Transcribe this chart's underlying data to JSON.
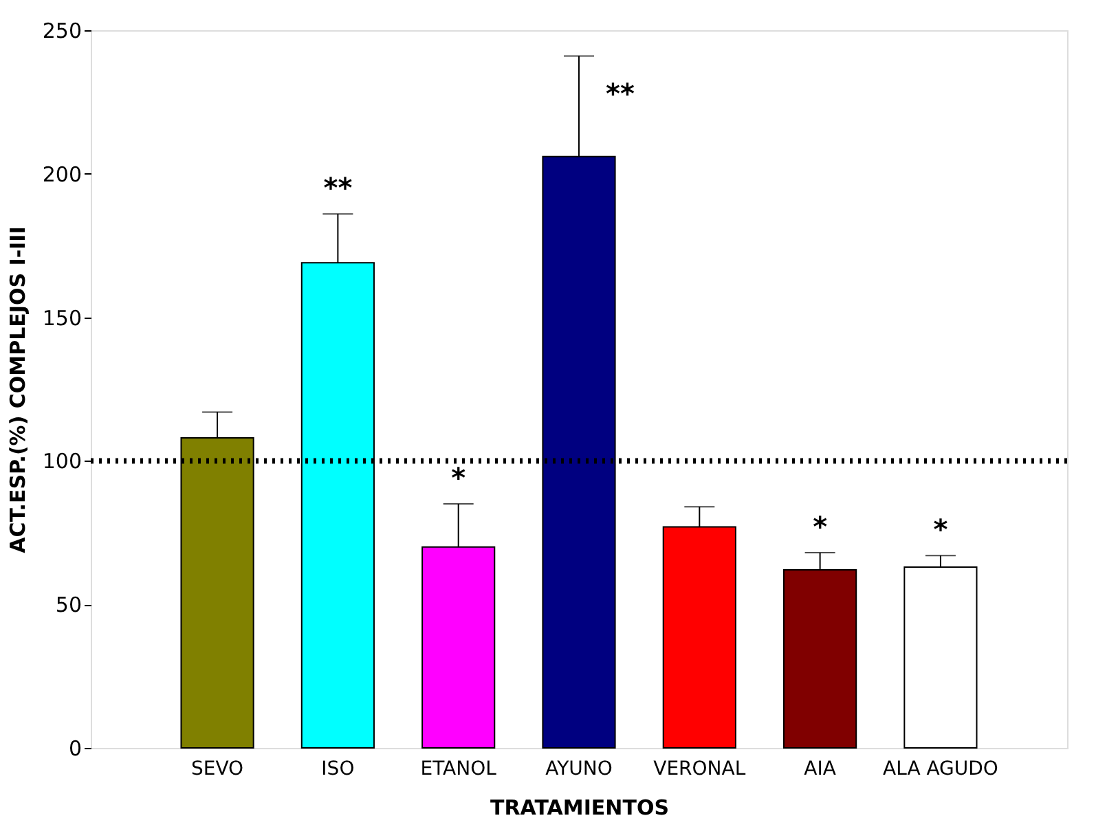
{
  "chart_data": {
    "type": "bar",
    "xlabel": "TRATAMIENTOS",
    "ylabel": "ACT.ESP.(%) COMPLEJOS I-III",
    "categories": [
      "SEVO",
      "ISO",
      "ETANOL",
      "AYUNO",
      "VERONAL",
      "AIA",
      "ALA AGUDO"
    ],
    "values": [
      108,
      169,
      70,
      206,
      77,
      62,
      63
    ],
    "errors": [
      9,
      17,
      15,
      35,
      7,
      6,
      4
    ],
    "colors": [
      "#808000",
      "#00ffff",
      "#ff00ff",
      "#000080",
      "#ff0000",
      "#800000",
      "#ffffff"
    ],
    "ylim": [
      0,
      250
    ],
    "yticks": [
      0,
      50,
      100,
      150,
      200,
      250
    ],
    "grid": false,
    "ref_lines": [
      {
        "axis": "y",
        "value": 100,
        "color": "#000000",
        "line_style": "dotted"
      }
    ],
    "value_labels": [
      null,
      "**",
      "*",
      "**",
      null,
      "*",
      "*"
    ]
  }
}
